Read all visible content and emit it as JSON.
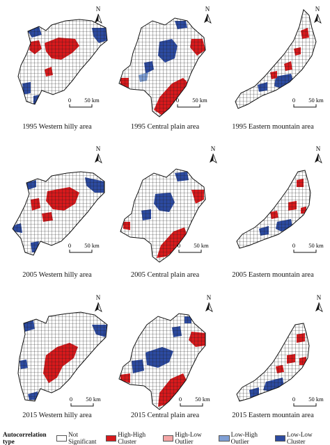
{
  "colors": {
    "not_significant": "#ffffff",
    "high_high": "#d7191c",
    "high_low": "#f4a6a6",
    "low_high": "#7f9fd4",
    "low_low": "#2c4aa0",
    "grid": "#1a1a1a"
  },
  "panels": [
    {
      "id": "p1",
      "caption": "1995 Western hilly area",
      "scale_zero": "0",
      "scale_label": "50 km",
      "north": "N"
    },
    {
      "id": "p2",
      "caption": "1995 Central plain area",
      "scale_zero": "0",
      "scale_label": "50 km",
      "north": "N"
    },
    {
      "id": "p3",
      "caption": "1995 Eastern mountain area",
      "scale_zero": "0",
      "scale_label": "50 km",
      "north": "N"
    },
    {
      "id": "p4",
      "caption": "2005 Western hilly area",
      "scale_zero": "0",
      "scale_label": "50 km",
      "north": "N"
    },
    {
      "id": "p5",
      "caption": "2005 Central plain area",
      "scale_zero": "0",
      "scale_label": "50 km",
      "north": "N"
    },
    {
      "id": "p6",
      "caption": "2005 Eastern mountain area",
      "scale_zero": "0",
      "scale_label": "50 km",
      "north": "N"
    },
    {
      "id": "p7",
      "caption": "2015 Western hilly area",
      "scale_zero": "0",
      "scale_label": "50 km",
      "north": "N"
    },
    {
      "id": "p8",
      "caption": "2015 Central plain area",
      "scale_zero": "0",
      "scale_label": "50 km",
      "north": "N"
    },
    {
      "id": "p9",
      "caption": "2015 Eastern mountain area",
      "scale_zero": "0",
      "scale_label": "50 km",
      "north": "N"
    }
  ],
  "legend": {
    "title": "Autocorrelation type",
    "items": [
      {
        "key": "not_significant",
        "label": "Not Significant"
      },
      {
        "key": "high_high",
        "label": "High-High Cluster"
      },
      {
        "key": "high_low",
        "label": "High-Low Outlier"
      },
      {
        "key": "low_high",
        "label": "Low-High Outlier"
      },
      {
        "key": "low_low",
        "label": "Low-Low Cluster"
      }
    ]
  }
}
